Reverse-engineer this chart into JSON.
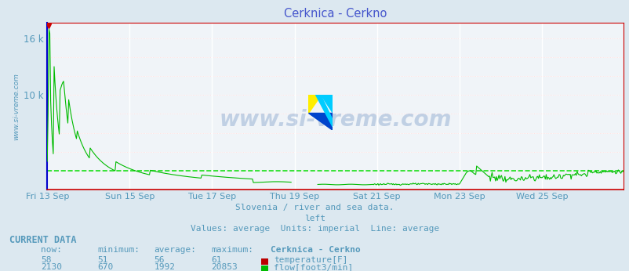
{
  "title": "Cerknica - Cerkno",
  "title_color": "#4455cc",
  "bg_color": "#dce8f0",
  "plot_bg_color": "#f0f4f8",
  "grid_v_color": "#ffffff",
  "grid_h_color": "#ffcccc",
  "left_spine_color": "#0000cc",
  "bottom_spine_color": "#cc0000",
  "right_spine_color": "#cc0000",
  "top_spine_color": "#cc0000",
  "text_color": "#5599bb",
  "watermark_color": "#3366aa",
  "subtitle1": "Slovenia / river and sea data.",
  "subtitle2": "left",
  "subtitle3": "Values: average  Units: imperial  Line: average",
  "footer_title": "CURRENT DATA",
  "footer_headers": [
    "now:",
    "minimum:",
    "average:",
    "maximum:",
    "Cerknica - Cerkno"
  ],
  "footer_row1": [
    "58",
    "51",
    "56",
    "61",
    "temperature[F]"
  ],
  "footer_row2": [
    "2130",
    "670",
    "1992",
    "20853",
    "flow[foot3/min]"
  ],
  "temp_color": "#bb0000",
  "flow_color": "#00bb00",
  "flow_avg_color": "#00dd00",
  "xticklabels": [
    "Fri 13 Sep",
    "Sun 15 Sep",
    "Tue 17 Sep",
    "Thu 19 Sep",
    "Sat 21 Sep",
    "Mon 23 Sep",
    "Wed 25 Sep"
  ],
  "xtick_positions": [
    0,
    96,
    192,
    288,
    384,
    480,
    576
  ],
  "ylim": [
    0,
    17600
  ],
  "ytick_vals": [
    2000,
    4000,
    6000,
    8000,
    10000,
    12000,
    14000,
    16000
  ],
  "ytick_show": [
    10000,
    16000
  ],
  "num_points": 672
}
